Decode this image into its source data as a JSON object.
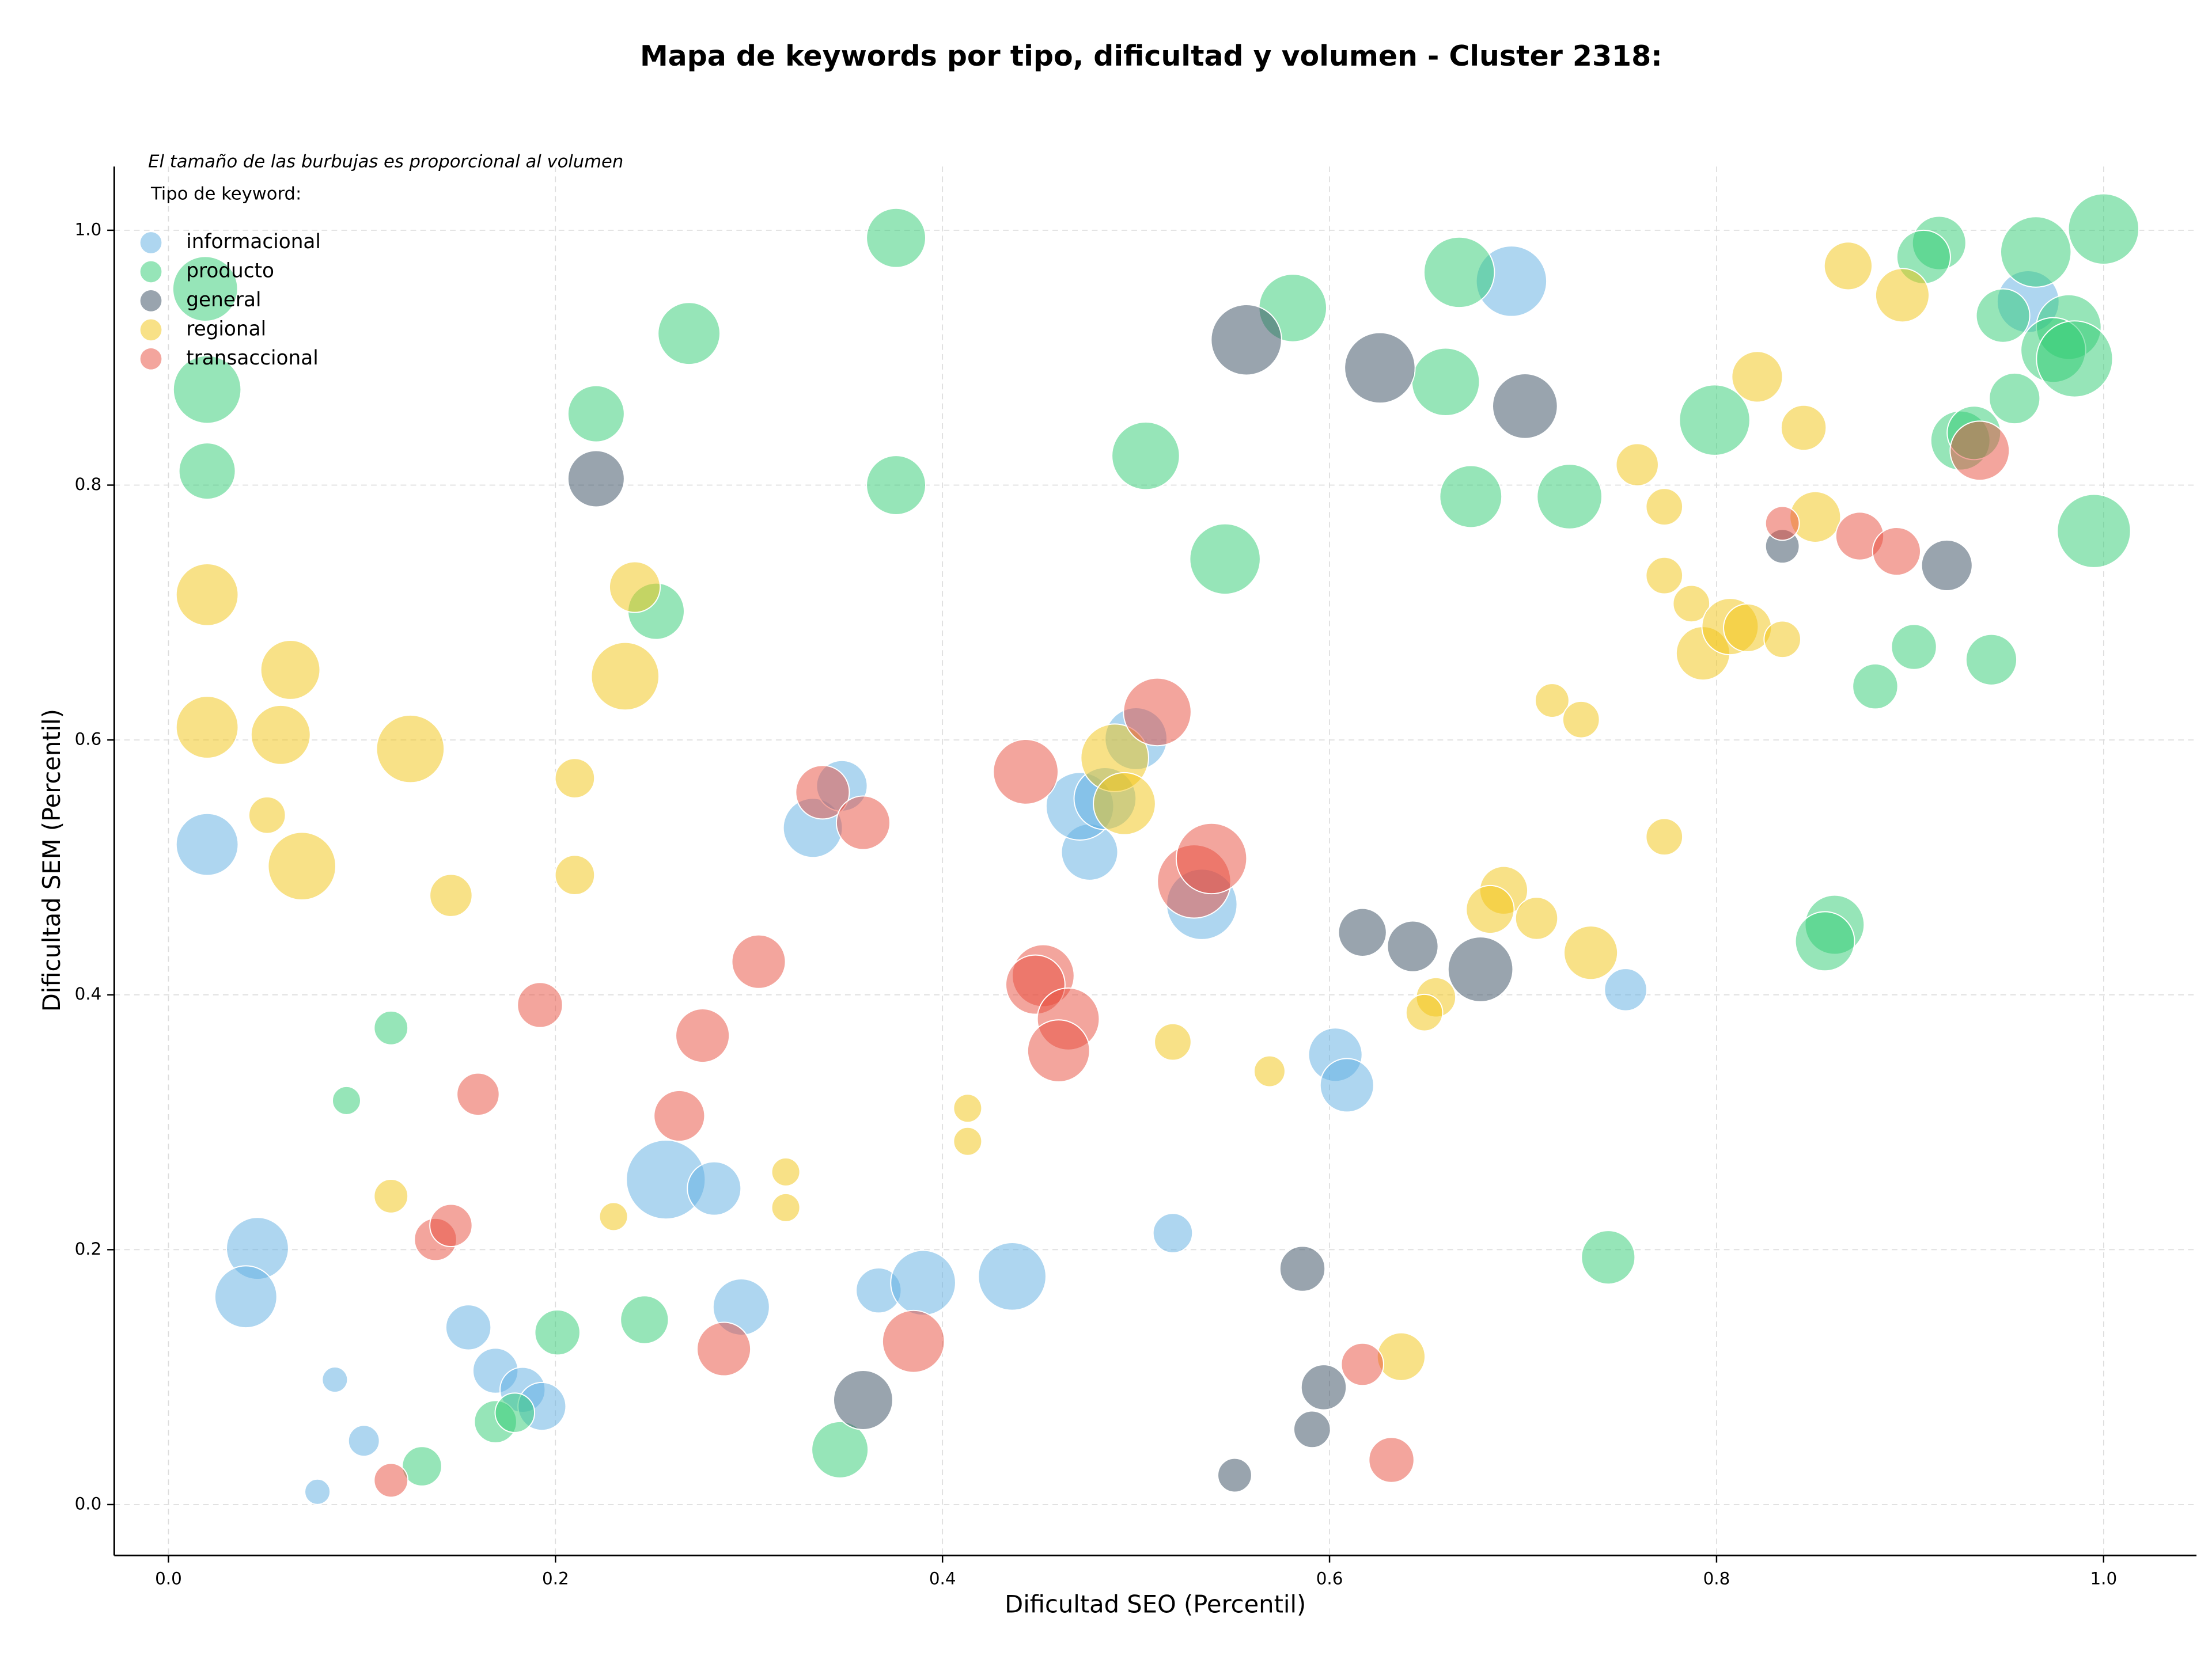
{
  "chart_data": {
    "type": "bubble",
    "title": "Mapa de keywords por tipo, dificultad y volumen - Cluster 2318:",
    "xlabel": "Dificultad SEO (Percentil)",
    "ylabel": "Dificultad SEM (Percentil)",
    "note": "El tamaño de las burbujas es proporcional al volumen",
    "legend_title": "Tipo de keyword:",
    "legend_position": "upper left",
    "grid": true,
    "alpha": 0.5,
    "xlim": [
      -0.028,
      1.048
    ],
    "ylim": [
      -0.04,
      1.05
    ],
    "xticks": [
      {
        "value": 0,
        "label": "0.0"
      },
      0.2,
      0.4,
      0.6,
      0.8,
      {
        "value": 1,
        "label": "1.0"
      }
    ],
    "yticks": [
      {
        "value": 0,
        "label": "0.0"
      },
      0.2,
      0.4,
      0.6,
      0.8,
      {
        "value": 1,
        "label": "1.0"
      }
    ],
    "series": [
      {
        "name": "informacional",
        "color": "#5dade2",
        "x": [
          0.02,
          0.046,
          0.04,
          0.086,
          0.101,
          0.077,
          0.155,
          0.169,
          0.183,
          0.193,
          0.257,
          0.282,
          0.296,
          0.333,
          0.348,
          0.367,
          0.39,
          0.436,
          0.476,
          0.471,
          0.484,
          0.5,
          0.534,
          0.519,
          0.603,
          0.609,
          0.694,
          0.753,
          0.961
        ],
        "values": [
          0.518,
          0.201,
          0.163,
          0.098,
          0.05,
          0.01,
          0.139,
          0.105,
          0.09,
          0.077,
          0.255,
          0.248,
          0.155,
          0.531,
          0.564,
          0.168,
          0.174,
          0.179,
          0.512,
          0.548,
          0.554,
          0.601,
          0.471,
          0.213,
          0.353,
          0.329,
          0.96,
          0.404,
          0.944
        ],
        "sizes": [
          484,
          484,
          484,
          81,
          121,
          81,
          256,
          256,
          256,
          289,
          784,
          361,
          400,
          441,
          324,
          256,
          529,
          576,
          400,
          576,
          484,
          484,
          625,
          196,
          361,
          361,
          625,
          225,
          484
        ]
      },
      {
        "name": "producto",
        "color": "#2ecc71",
        "x": [
          0.019,
          0.02,
          0.02,
          0.376,
          0.269,
          0.221,
          0.376,
          0.252,
          0.115,
          0.092,
          0.201,
          0.246,
          0.131,
          0.169,
          0.179,
          0.347,
          0.581,
          0.667,
          0.66,
          0.505,
          0.546,
          0.673,
          0.724,
          0.799,
          1.0,
          0.915,
          0.907,
          0.965,
          0.948,
          0.982,
          0.974,
          0.985,
          0.954,
          0.926,
          0.933,
          0.995,
          0.902,
          0.942,
          0.882,
          0.861,
          0.856,
          0.744
        ],
        "values": [
          0.954,
          0.875,
          0.811,
          0.994,
          0.919,
          0.856,
          0.8,
          0.701,
          0.374,
          0.317,
          0.135,
          0.145,
          0.03,
          0.065,
          0.072,
          0.043,
          0.939,
          0.967,
          0.881,
          0.823,
          0.742,
          0.791,
          0.791,
          0.851,
          1.001,
          0.99,
          0.979,
          0.983,
          0.933,
          0.924,
          0.906,
          0.899,
          0.868,
          0.835,
          0.841,
          0.764,
          0.673,
          0.663,
          0.642,
          0.455,
          0.442,
          0.194
        ],
        "sizes": [
          529,
          576,
          400,
          441,
          484,
          400,
          441,
          400,
          144,
          100,
          256,
          289,
          196,
          225,
          196,
          400,
          576,
          625,
          576,
          576,
          625,
          484,
          529,
          625,
          625,
          361,
          361,
          625,
          361,
          529,
          529,
          729,
          324,
          441,
          361,
          676,
          256,
          324,
          256,
          441,
          441,
          361
        ]
      },
      {
        "name": "general",
        "color": "#34495e",
        "x": [
          0.221,
          0.359,
          0.557,
          0.626,
          0.701,
          0.617,
          0.643,
          0.678,
          0.586,
          0.597,
          0.591,
          0.551,
          0.834,
          0.919
        ],
        "values": [
          0.805,
          0.082,
          0.914,
          0.892,
          0.862,
          0.449,
          0.438,
          0.42,
          0.185,
          0.092,
          0.059,
          0.023,
          0.752,
          0.737
        ],
        "sizes": [
          400,
          441,
          625,
          625,
          529,
          289,
          324,
          529,
          256,
          256,
          169,
          144,
          144,
          324
        ]
      },
      {
        "name": "regional",
        "color": "#f1c40f",
        "x": [
          0.02,
          0.063,
          0.02,
          0.058,
          0.051,
          0.069,
          0.125,
          0.146,
          0.21,
          0.21,
          0.241,
          0.236,
          0.115,
          0.23,
          0.319,
          0.319,
          0.413,
          0.413,
          0.489,
          0.494,
          0.519,
          0.569,
          0.637,
          0.655,
          0.649,
          0.69,
          0.683,
          0.707,
          0.735,
          0.715,
          0.73,
          0.773,
          0.759,
          0.773,
          0.773,
          0.787,
          0.793,
          0.807,
          0.816,
          0.834,
          0.821,
          0.845,
          0.851,
          0.868,
          0.896
        ],
        "values": [
          0.714,
          0.655,
          0.61,
          0.604,
          0.541,
          0.501,
          0.593,
          0.478,
          0.57,
          0.494,
          0.72,
          0.65,
          0.242,
          0.226,
          0.261,
          0.233,
          0.311,
          0.285,
          0.586,
          0.55,
          0.363,
          0.34,
          0.116,
          0.398,
          0.386,
          0.482,
          0.467,
          0.46,
          0.433,
          0.631,
          0.616,
          0.524,
          0.816,
          0.783,
          0.729,
          0.707,
          0.668,
          0.689,
          0.688,
          0.679,
          0.885,
          0.845,
          0.775,
          0.972,
          0.949
        ],
        "sizes": [
          484,
          441,
          484,
          441,
          169,
          576,
          576,
          225,
          196,
          196,
          324,
          576,
          144,
          100,
          100,
          100,
          100,
          100,
          576,
          484,
          169,
          121,
          289,
          196,
          169,
          289,
          289,
          225,
          361,
          144,
          169,
          169,
          225,
          169,
          169,
          169,
          361,
          400,
          289,
          169,
          324,
          256,
          324,
          289,
          361
        ]
      },
      {
        "name": "transaccional",
        "color": "#e74c3c",
        "x": [
          0.115,
          0.138,
          0.146,
          0.16,
          0.192,
          0.264,
          0.276,
          0.305,
          0.287,
          0.338,
          0.359,
          0.385,
          0.443,
          0.452,
          0.448,
          0.465,
          0.46,
          0.511,
          0.53,
          0.539,
          0.617,
          0.632,
          0.834,
          0.874,
          0.893,
          0.936
        ],
        "values": [
          0.019,
          0.208,
          0.219,
          0.322,
          0.392,
          0.305,
          0.368,
          0.426,
          0.122,
          0.559,
          0.535,
          0.128,
          0.575,
          0.415,
          0.408,
          0.381,
          0.356,
          0.622,
          0.489,
          0.507,
          0.11,
          0.035,
          0.77,
          0.76,
          0.748,
          0.827
        ],
        "sizes": [
          144,
          225,
          225,
          225,
          256,
          324,
          361,
          361,
          361,
          361,
          361,
          484,
          529,
          484,
          441,
          484,
          484,
          576,
          676,
          625,
          225,
          256,
          144,
          289,
          289,
          441
        ]
      }
    ]
  }
}
